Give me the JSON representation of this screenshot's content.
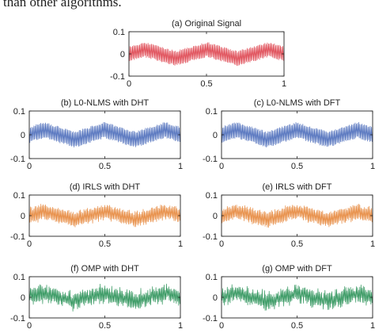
{
  "caption": "than other algorithms.",
  "chart_data": [
    {
      "type": "line",
      "title": "(a) Original Signal",
      "color": "#e0505a",
      "noise": 0.0,
      "x": [
        0,
        0.1,
        0.2,
        0.3,
        0.4,
        0.5,
        0.6,
        0.7,
        0.8,
        0.9,
        1
      ],
      "envelope_center": [
        0,
        0.02,
        0,
        -0.02,
        0,
        0.02,
        0,
        -0.02,
        0,
        0.02,
        0
      ],
      "ylim": [
        -0.1,
        0.1
      ],
      "xlim": [
        0,
        1
      ],
      "yticks": [
        "0.1",
        "0",
        "-0.1"
      ],
      "xticks": [
        "0",
        "0.5",
        "1"
      ]
    },
    {
      "type": "line",
      "title": "(b) L0-NLMS with DHT",
      "color": "#5a78c0",
      "noise": 0.0,
      "x": [
        0,
        0.1,
        0.2,
        0.3,
        0.4,
        0.5,
        0.6,
        0.7,
        0.8,
        0.9,
        1
      ],
      "envelope_center": [
        0,
        0.02,
        0,
        -0.02,
        0,
        0.02,
        0,
        -0.02,
        0,
        0.02,
        0
      ],
      "ylim": [
        -0.1,
        0.1
      ],
      "xlim": [
        0,
        1
      ],
      "yticks": [
        "0.1",
        "0",
        "-0.1"
      ],
      "xticks": [
        "0",
        "0.5",
        "1"
      ]
    },
    {
      "type": "line",
      "title": "(c) L0-NLMS with DFT",
      "color": "#5a78c0",
      "noise": 0.0,
      "x": [
        0,
        0.1,
        0.2,
        0.3,
        0.4,
        0.5,
        0.6,
        0.7,
        0.8,
        0.9,
        1
      ],
      "envelope_center": [
        0,
        0.02,
        0,
        -0.02,
        0,
        0.02,
        0,
        -0.02,
        0,
        0.02,
        0
      ],
      "ylim": [
        -0.1,
        0.1
      ],
      "xlim": [
        0,
        1
      ],
      "yticks": [
        "0.1",
        "0",
        "-0.1"
      ],
      "xticks": [
        "0",
        "0.5",
        "1"
      ]
    },
    {
      "type": "line",
      "title": "(d) IRLS with DHT",
      "color": "#e8904a",
      "noise": 0.01,
      "x": [
        0,
        0.1,
        0.2,
        0.3,
        0.4,
        0.5,
        0.6,
        0.7,
        0.8,
        0.9,
        1
      ],
      "envelope_center": [
        0,
        0.02,
        0,
        -0.02,
        0,
        0.02,
        0,
        -0.02,
        0,
        0.02,
        0
      ],
      "ylim": [
        -0.1,
        0.1
      ],
      "xlim": [
        0,
        1
      ],
      "yticks": [
        "0.1",
        "0",
        "-0.1"
      ],
      "xticks": [
        "0",
        "0.5",
        "1"
      ]
    },
    {
      "type": "line",
      "title": "(e) IRLS with DFT",
      "color": "#e8904a",
      "noise": 0.01,
      "x": [
        0,
        0.1,
        0.2,
        0.3,
        0.4,
        0.5,
        0.6,
        0.7,
        0.8,
        0.9,
        1
      ],
      "envelope_center": [
        0,
        0.02,
        0,
        -0.02,
        0,
        0.02,
        0,
        -0.02,
        0,
        0.02,
        0
      ],
      "ylim": [
        -0.1,
        0.1
      ],
      "xlim": [
        0,
        1
      ],
      "yticks": [
        "0.1",
        "0",
        "-0.1"
      ],
      "xticks": [
        "0",
        "0.5",
        "1"
      ]
    },
    {
      "type": "line",
      "title": "(f) OMP with DHT",
      "color": "#3a9a64",
      "noise": 0.02,
      "x": [
        0,
        0.1,
        0.2,
        0.3,
        0.4,
        0.5,
        0.6,
        0.7,
        0.8,
        0.9,
        1
      ],
      "envelope_center": [
        0,
        0.02,
        0,
        -0.02,
        0,
        0.02,
        0,
        -0.02,
        0,
        0.02,
        0
      ],
      "ylim": [
        -0.1,
        0.1
      ],
      "xlim": [
        0,
        1
      ],
      "yticks": [
        "0.1",
        "0",
        "-0.1"
      ],
      "xticks": [
        "0",
        "0.5",
        "1"
      ]
    },
    {
      "type": "line",
      "title": "(g) OMP with DFT",
      "color": "#3a9a64",
      "noise": 0.02,
      "x": [
        0,
        0.1,
        0.2,
        0.3,
        0.4,
        0.5,
        0.6,
        0.7,
        0.8,
        0.9,
        1
      ],
      "envelope_center": [
        0,
        0.02,
        0,
        -0.02,
        0,
        0.02,
        0,
        -0.02,
        0,
        0.02,
        0
      ],
      "ylim": [
        -0.1,
        0.1
      ],
      "xlim": [
        0,
        1
      ],
      "yticks": [
        "0.1",
        "0",
        "-0.1"
      ],
      "xticks": [
        "0",
        "0.5",
        "1"
      ]
    }
  ]
}
